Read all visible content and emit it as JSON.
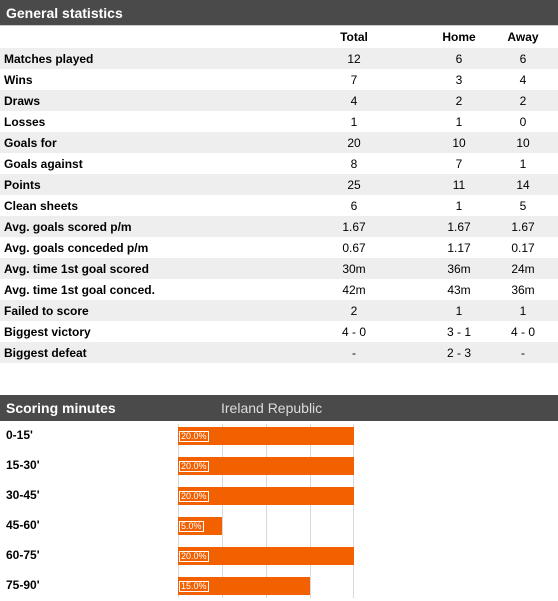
{
  "general": {
    "title": "General statistics",
    "columns": [
      "",
      "Total",
      "Home",
      "Away"
    ],
    "rows": [
      {
        "label": "Matches played",
        "total": "12",
        "home": "6",
        "away": "6"
      },
      {
        "label": "Wins",
        "total": "7",
        "home": "3",
        "away": "4"
      },
      {
        "label": "Draws",
        "total": "4",
        "home": "2",
        "away": "2"
      },
      {
        "label": "Losses",
        "total": "1",
        "home": "1",
        "away": "0"
      },
      {
        "label": "Goals for",
        "total": "20",
        "home": "10",
        "away": "10"
      },
      {
        "label": "Goals against",
        "total": "8",
        "home": "7",
        "away": "1"
      },
      {
        "label": "Points",
        "total": "25",
        "home": "11",
        "away": "14"
      },
      {
        "label": "Clean sheets",
        "total": "6",
        "home": "1",
        "away": "5"
      },
      {
        "label": "Avg. goals scored p/m",
        "total": "1.67",
        "home": "1.67",
        "away": "1.67"
      },
      {
        "label": "Avg. goals conceded p/m",
        "total": "0.67",
        "home": "1.17",
        "away": "0.17"
      },
      {
        "label": "Avg. time 1st goal scored",
        "total": "30m",
        "home": "36m",
        "away": "24m"
      },
      {
        "label": "Avg. time 1st goal conced.",
        "total": "42m",
        "home": "43m",
        "away": "36m"
      },
      {
        "label": "Failed to score",
        "total": "2",
        "home": "1",
        "away": "1"
      },
      {
        "label": "Biggest victory",
        "total": "4 - 0",
        "home": "3 - 1",
        "away": "4 - 0"
      },
      {
        "label": "Biggest defeat",
        "total": "-",
        "home": "2 - 3",
        "away": "-"
      }
    ]
  },
  "scoring": {
    "title": "Scoring minutes",
    "team": "Ireland Republic",
    "bar_color": "#f26000",
    "items": [
      {
        "label": "0-15'",
        "pct_text": "20.0%",
        "value": 20.0
      },
      {
        "label": "15-30'",
        "pct_text": "20.0%",
        "value": 20.0
      },
      {
        "label": "30-45'",
        "pct_text": "20.0%",
        "value": 20.0
      },
      {
        "label": "45-60'",
        "pct_text": "5.0%",
        "value": 5.0
      },
      {
        "label": "60-75'",
        "pct_text": "20.0%",
        "value": 20.0
      },
      {
        "label": "75-90'",
        "pct_text": "15.0%",
        "value": 15.0
      }
    ]
  }
}
